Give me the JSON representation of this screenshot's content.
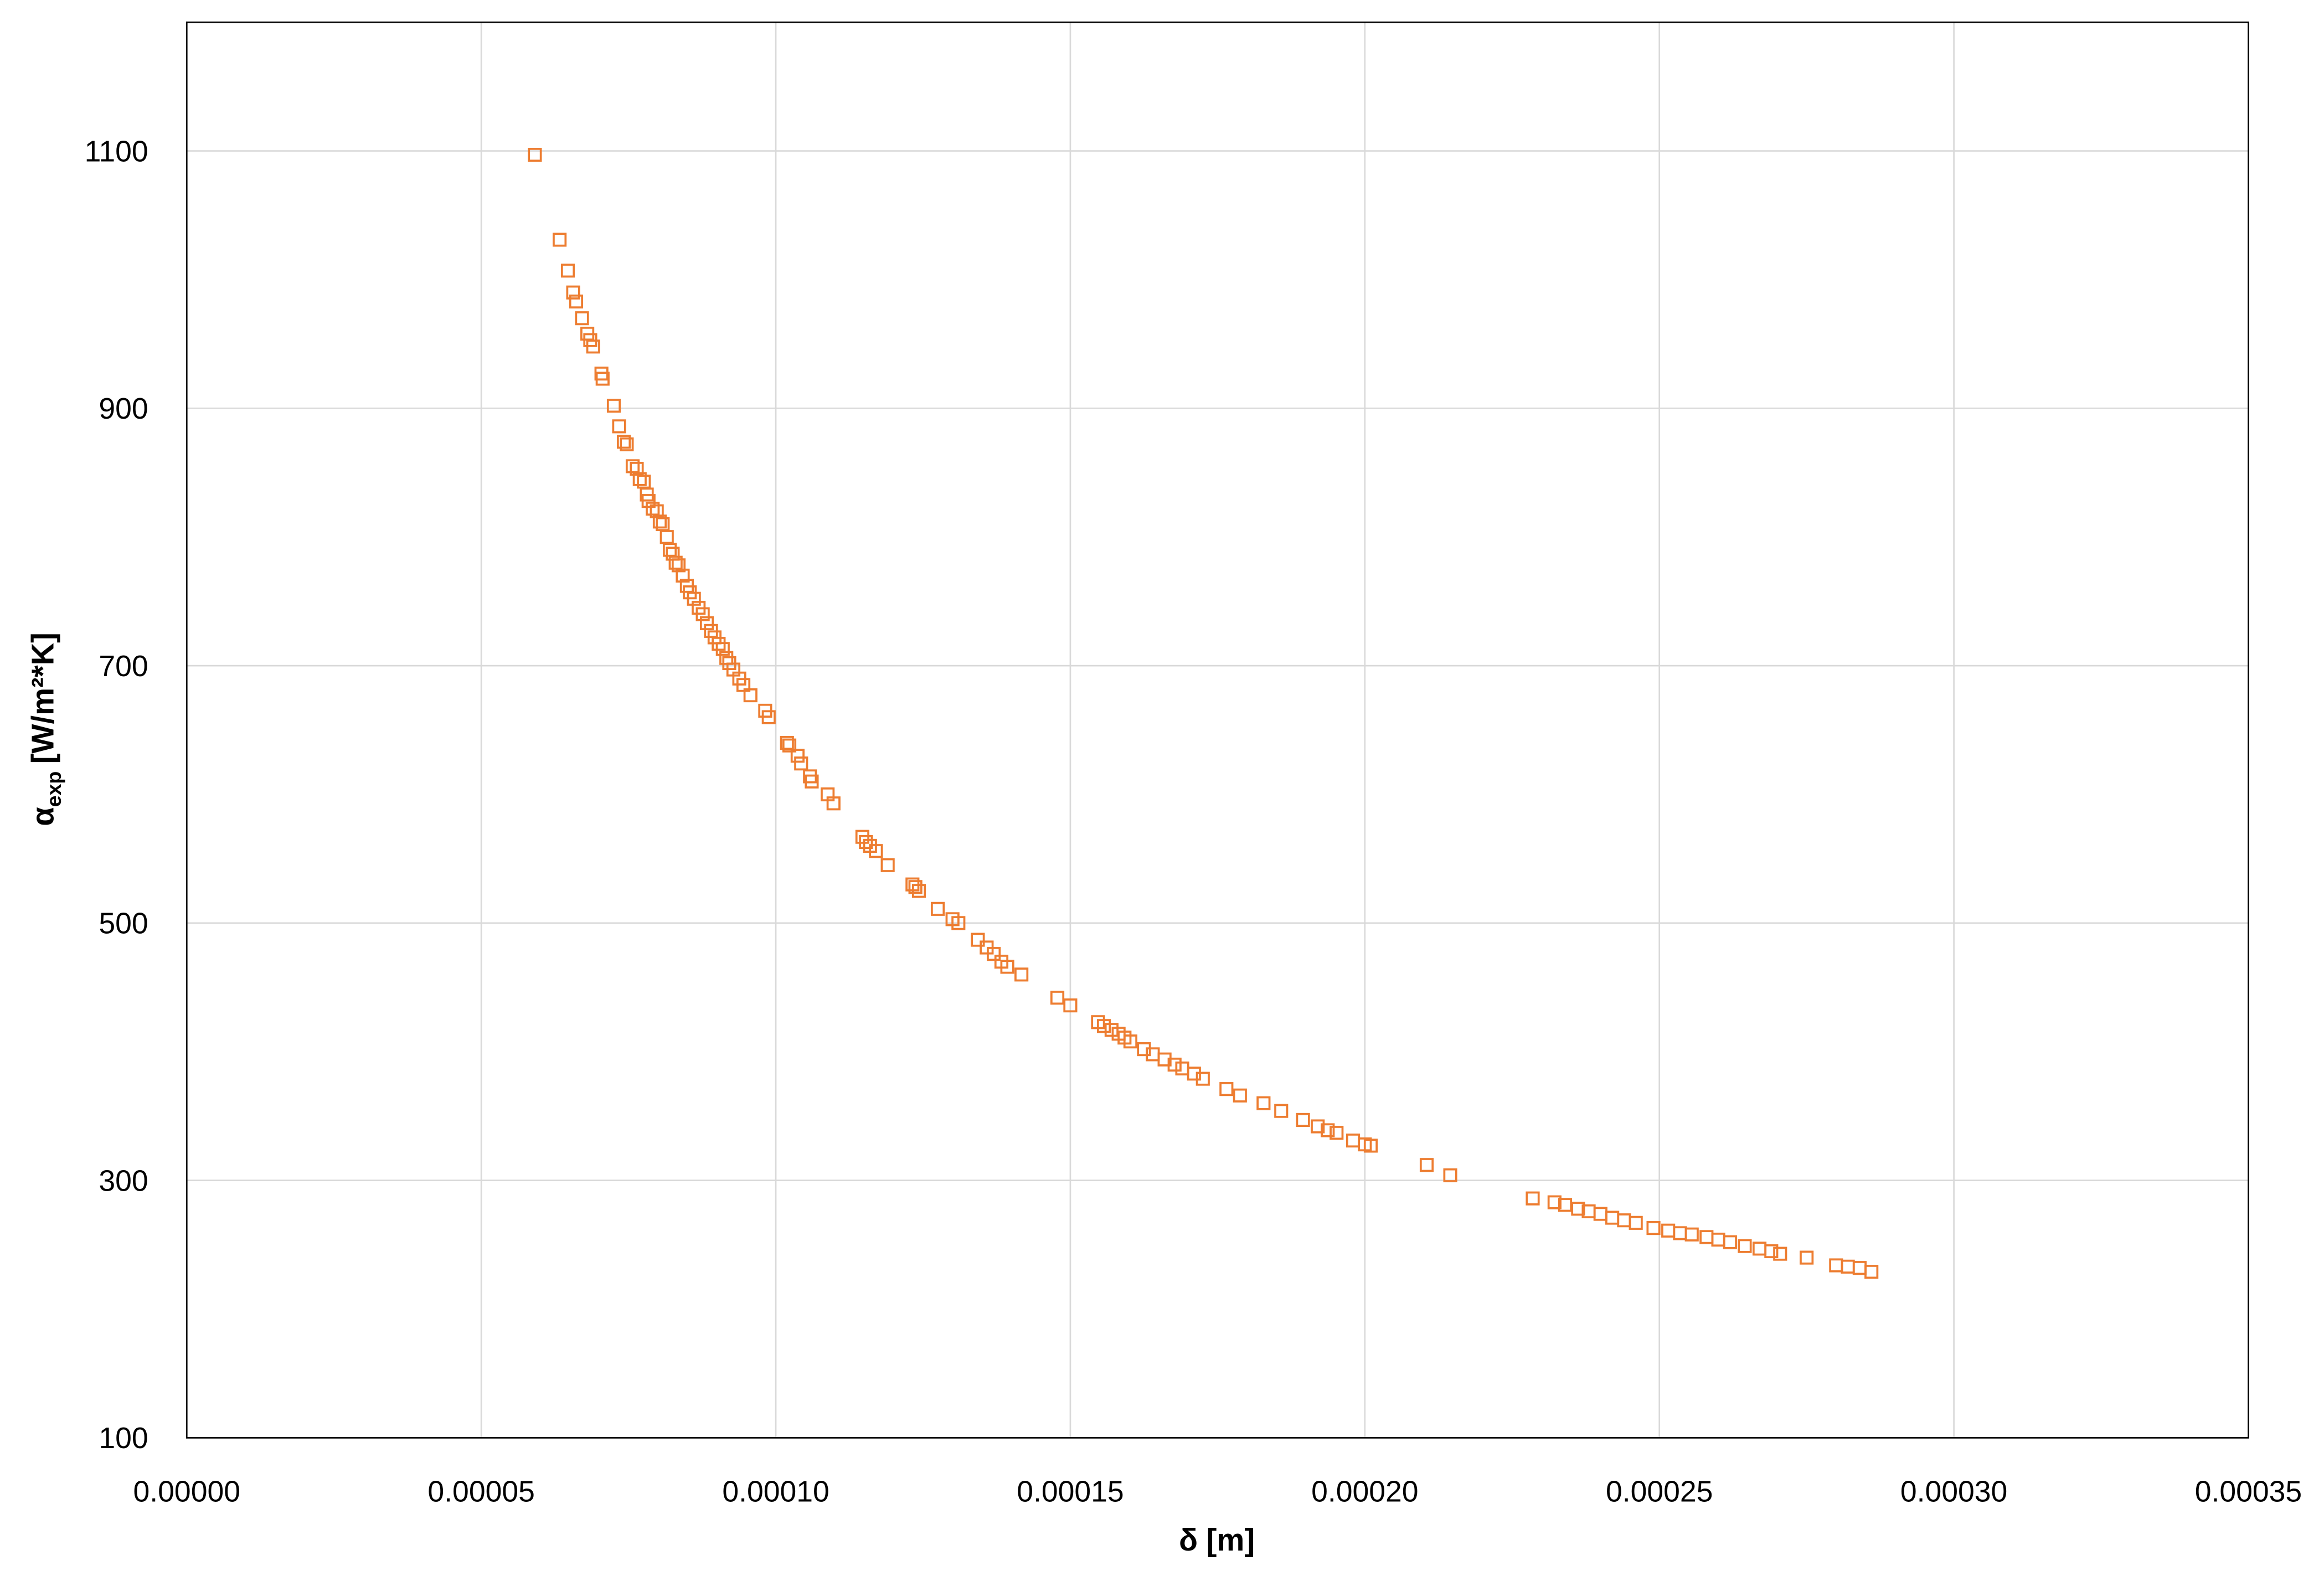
{
  "chart_data": {
    "type": "scatter",
    "xlabel": "δ [m]",
    "ylabel": [
      "α",
      "exp",
      "[W/m²*K]"
    ],
    "color": "#ed7d31",
    "grid": true,
    "xlim": [
      0,
      0.00035
    ],
    "ylim": [
      100,
      1200
    ],
    "xticks": [
      {
        "value": 0,
        "label": "0.00000"
      },
      {
        "value": 5e-05,
        "label": "0.00005"
      },
      {
        "value": 0.0001,
        "label": "0.00010"
      },
      {
        "value": 0.00015,
        "label": "0.00015"
      },
      {
        "value": 0.0002,
        "label": "0.00020"
      },
      {
        "value": 0.00025,
        "label": "0.00025"
      },
      {
        "value": 0.0003,
        "label": "0.00030"
      },
      {
        "value": 0.00035,
        "label": "0.00035"
      }
    ],
    "yticks": [
      100,
      300,
      500,
      700,
      900,
      1100
    ],
    "x": [
      5.91e-05,
      6.33e-05,
      6.47e-05,
      6.56e-05,
      6.61e-05,
      6.71e-05,
      6.8e-05,
      6.85e-05,
      6.9e-05,
      7.04e-05,
      7.06e-05,
      7.25e-05,
      7.34e-05,
      7.42e-05,
      7.47e-05,
      7.57e-05,
      7.64e-05,
      7.69e-05,
      7.76e-05,
      7.81e-05,
      7.84e-05,
      7.91e-05,
      7.98e-05,
      8.03e-05,
      8.08e-05,
      8.15e-05,
      8.2e-05,
      8.25e-05,
      8.3e-05,
      8.35e-05,
      8.42e-05,
      8.49e-05,
      8.54e-05,
      8.61e-05,
      8.69e-05,
      8.76e-05,
      8.83e-05,
      8.9e-05,
      8.96e-05,
      9.03e-05,
      9.1e-05,
      9.16e-05,
      9.21e-05,
      9.28e-05,
      9.38e-05,
      9.45e-05,
      9.57e-05,
      9.82e-05,
      9.88e-05,
      0.0001019,
      0.0001023,
      0.0001037,
      0.0001043,
      0.0001058,
      0.0001061,
      0.0001088,
      0.0001098,
      0.0001147,
      0.0001153,
      0.000116,
      0.000117,
      0.000119,
      0.0001232,
      0.0001237,
      0.0001243,
      0.0001275,
      0.00013,
      0.000131,
      0.0001343,
      0.0001358,
      0.000137,
      0.0001383,
      0.0001393,
      0.0001417,
      0.0001478,
      0.00015,
      0.0001547,
      0.0001557,
      0.000157,
      0.0001582,
      0.0001592,
      0.0001602,
      0.0001625,
      0.000164,
      0.000166,
      0.0001677,
      0.000169,
      0.000171,
      0.0001725,
      0.0001765,
      0.0001788,
      0.0001828,
      0.0001858,
      0.0001895,
      0.000192,
      0.0001937,
      0.0001952,
      0.000198,
      0.0002,
      0.000201,
      0.0002105,
      0.0002145,
      0.0002285,
      0.0002322,
      0.000234,
      0.0002362,
      0.000238,
      0.00024,
      0.000242,
      0.000244,
      0.000246,
      0.000249,
      0.0002515,
      0.0002535,
      0.0002555,
      0.000258,
      0.00026,
      0.000262,
      0.0002645,
      0.000267,
      0.000269,
      0.0002705,
      0.000275,
      0.00028,
      0.000282,
      0.000284,
      0.000286
    ],
    "values": [
      1097,
      1031,
      1007,
      990,
      983,
      970,
      958,
      953,
      948,
      927,
      923,
      902,
      886,
      874,
      872,
      855,
      853,
      845,
      843,
      833,
      828,
      822,
      820,
      812,
      810,
      800,
      790,
      787,
      780,
      778,
      770,
      762,
      757,
      752,
      745,
      740,
      733,
      727,
      722,
      717,
      713,
      706,
      702,
      697,
      690,
      685,
      677,
      665,
      660,
      640,
      638,
      630,
      624,
      614,
      610,
      600,
      593,
      567,
      563,
      560,
      556,
      545,
      530,
      528,
      525,
      511,
      503,
      500,
      487,
      481,
      476,
      470,
      466,
      460,
      442,
      436,
      423,
      420,
      417,
      414,
      411,
      408,
      402,
      398,
      394,
      390,
      387,
      383,
      379,
      371,
      366,
      360,
      354,
      347,
      342,
      339,
      337,
      331,
      328,
      327,
      312,
      304,
      286,
      283,
      281,
      278,
      276,
      274,
      271,
      269,
      267,
      263,
      261,
      259,
      258,
      256,
      254,
      252,
      249,
      247,
      245,
      243,
      240,
      234,
      233,
      232,
      229
    ]
  }
}
